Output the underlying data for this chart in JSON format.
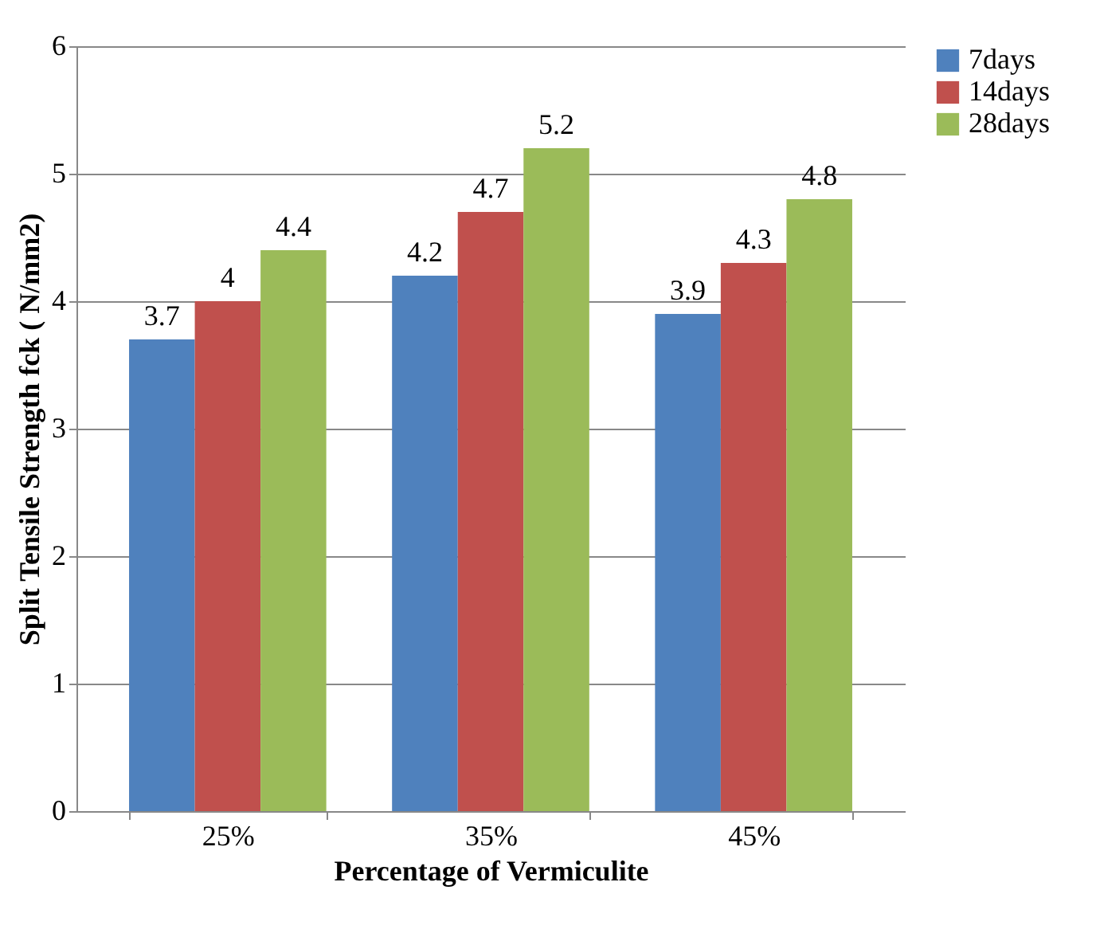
{
  "chart_data": {
    "type": "bar",
    "xlabel": "Percentage of Vermiculite",
    "ylabel": "Split Tensile Strength fck ( N/mm2)",
    "categories": [
      "25%",
      "35%",
      "45%"
    ],
    "series": [
      {
        "name": "7days",
        "color": "#4f81bd",
        "values": [
          3.7,
          4.2,
          3.9
        ]
      },
      {
        "name": "14days",
        "color": "#c0504d",
        "values": [
          4,
          4.7,
          4.3
        ]
      },
      {
        "name": "28days",
        "color": "#9bbb59",
        "values": [
          4.4,
          5.2,
          4.8
        ]
      }
    ],
    "ylim": [
      0,
      6
    ],
    "yticks": [
      0,
      1,
      2,
      3,
      4,
      5,
      6
    ],
    "grid": "y",
    "legend": "right",
    "data_labels": true
  }
}
